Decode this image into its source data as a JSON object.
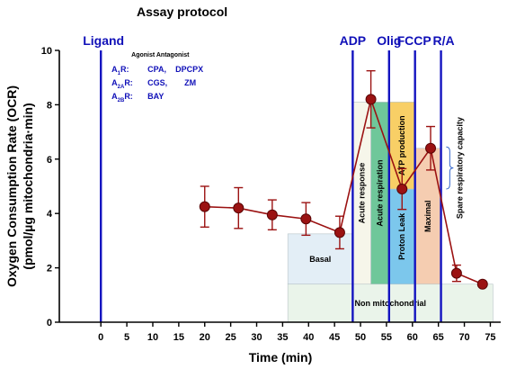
{
  "chart_data": {
    "type": "line",
    "title": "Assay protocol",
    "xlabel": "Time (min)",
    "ylabel_line1": "Oxygen Consumption Rate (OCR)",
    "ylabel_line2": "(pmol/µg mitochondria·min)",
    "xlim": [
      -8,
      77
    ],
    "ylim": [
      0,
      10
    ],
    "x_ticks": [
      0,
      5,
      10,
      15,
      20,
      25,
      30,
      35,
      40,
      45,
      50,
      55,
      60,
      65,
      70,
      75
    ],
    "x_tick_labels": [
      "0",
      "5",
      "10",
      "15",
      "20",
      "25",
      "30",
      "35",
      "40",
      "45",
      "50",
      "55",
      "60",
      "65",
      "70",
      "75"
    ],
    "y_ticks": [
      0,
      2,
      4,
      6,
      8,
      10
    ],
    "y_tick_labels": [
      "0",
      "2",
      "4",
      "6",
      "8",
      "10"
    ],
    "grid": false,
    "colors": {
      "series": "#9b1212",
      "event_line": "#1414c0",
      "basal_box": "#e3eef6",
      "acute_response_box": "#f6f6ea",
      "acute_respiration_box": "#6fc79a",
      "proton_leak_box": "#7cc7ec",
      "atp_box": "#f8cf66",
      "maximal_box": "#f5cdb1",
      "nonmito_box": "#eaf4ea",
      "brace": "#3366cc"
    },
    "series": [
      {
        "x": [
          20,
          26.5,
          33,
          39.5,
          46,
          52,
          58,
          63.5,
          68.5,
          73.5
        ],
        "y": [
          4.25,
          4.2,
          3.95,
          3.8,
          3.3,
          8.2,
          4.9,
          6.4,
          1.8,
          1.4
        ],
        "err": [
          0.75,
          0.75,
          0.55,
          0.6,
          0.6,
          1.05,
          0.75,
          0.8,
          0.3,
          0.0
        ]
      }
    ],
    "events": [
      {
        "x": 0,
        "label": "Ligand"
      },
      {
        "x": 48.5,
        "label": "ADP"
      },
      {
        "x": 55.5,
        "label": "Olig"
      },
      {
        "x": 60.5,
        "label": "FCCP"
      },
      {
        "x": 65.5,
        "label": "R/A"
      }
    ],
    "phases": [
      {
        "label": "Basal",
        "x0": 36,
        "x1": 48.5,
        "y0": 1.4,
        "y1": 3.25,
        "color_key": "basal_box",
        "vertical": false
      },
      {
        "label": "Non mitochondrial",
        "x0": 36,
        "x1": 75.5,
        "y0": 0,
        "y1": 1.4,
        "color_key": "nonmito_box",
        "vertical": false
      },
      {
        "label": "Acute response",
        "x0": 48.5,
        "x1": 52,
        "y0": 1.4,
        "y1": 8.1,
        "color_key": "acute_response_box",
        "vertical": true
      },
      {
        "label": "Acute respiration",
        "x0": 52,
        "x1": 55.5,
        "y0": 1.4,
        "y1": 8.1,
        "color_key": "acute_respiration_box",
        "vertical": true
      },
      {
        "label": "Proton Leak",
        "x0": 55.5,
        "x1": 60.5,
        "y0": 1.4,
        "y1": 4.9,
        "color_key": "proton_leak_box",
        "vertical": true
      },
      {
        "label": "ATP production",
        "x0": 55.5,
        "x1": 60.5,
        "y0": 4.9,
        "y1": 8.1,
        "color_key": "atp_box",
        "vertical": true
      },
      {
        "label": "Maximal",
        "x0": 60.5,
        "x1": 65.5,
        "y0": 1.4,
        "y1": 6.4,
        "color_key": "maximal_box",
        "vertical": true
      }
    ],
    "spare_label": "Spare respiratory capacity",
    "legend": {
      "header": "Agonist Antagonist",
      "rows": [
        {
          "receptor": "A",
          "sub": "1",
          "suffix": "R:",
          "agonist": "CPA,",
          "antagonist": "DPCPX"
        },
        {
          "receptor": "A",
          "sub": "2A",
          "suffix": "R:",
          "agonist": "CGS,",
          "antagonist": "ZM"
        },
        {
          "receptor": "A",
          "sub": "2B",
          "suffix": "R:",
          "agonist": "BAY",
          "antagonist": ""
        }
      ]
    }
  }
}
